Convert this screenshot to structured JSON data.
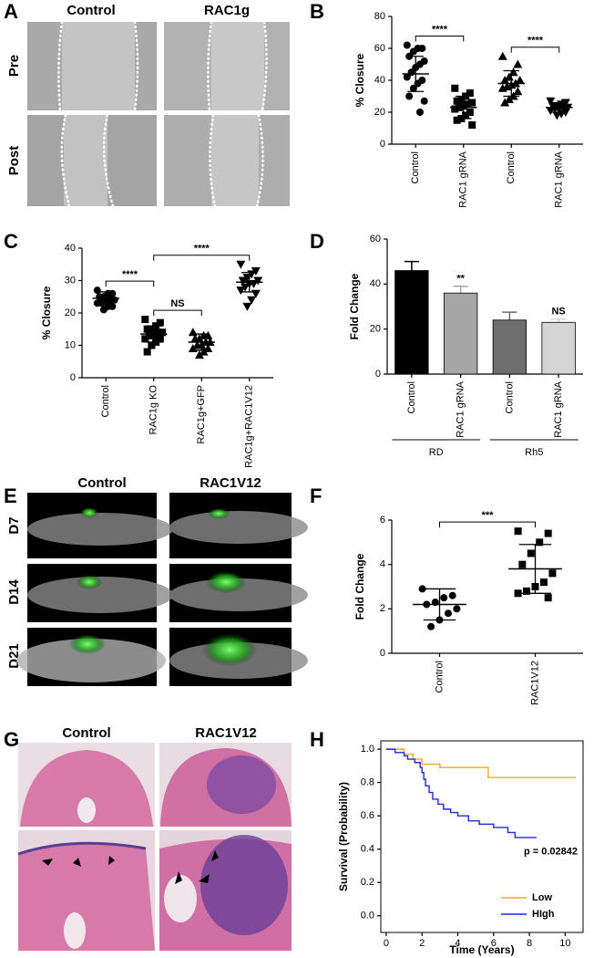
{
  "images": [
    {
      "panel": "A",
      "columns": [
        "Control",
        "RAC1g"
      ],
      "rows": [
        "Pre",
        "Post"
      ]
    },
    {
      "panel": "E",
      "columns": [
        "Control",
        "RAC1V12"
      ],
      "rows": [
        "D7",
        "D14",
        "D21"
      ]
    },
    {
      "panel": "G",
      "columns": [
        "Control",
        "RAC1V12"
      ]
    }
  ],
  "chart_data": [
    {
      "type": "strip",
      "panel": "B",
      "ylabel": "% Closure",
      "categories": [
        "Control",
        "RAC1 gRNA",
        "Control",
        "RAC1 gRNA"
      ],
      "ylim": [
        0,
        80
      ],
      "yticks": [
        0,
        20,
        40,
        60,
        80
      ],
      "color": "#000000",
      "groups": [
        {
          "marker": "circle",
          "values": [
            62,
            60,
            60,
            58,
            55,
            52,
            50,
            48,
            45,
            42,
            40,
            38,
            35,
            30,
            27,
            20
          ],
          "mean": 44,
          "sd": 11
        },
        {
          "marker": "square",
          "values": [
            35,
            32,
            30,
            28,
            27,
            26,
            25,
            24,
            23,
            22,
            20,
            18,
            16,
            15,
            12
          ],
          "mean": 23,
          "sd": 7
        },
        {
          "marker": "triangle",
          "values": [
            55,
            50,
            45,
            42,
            40,
            40,
            38,
            37,
            36,
            35,
            33,
            30,
            28,
            26
          ],
          "mean": 38,
          "sd": 8
        },
        {
          "marker": "triangle-down",
          "values": [
            27,
            26,
            25,
            24,
            24,
            23,
            23,
            22,
            22,
            21,
            20,
            19,
            18
          ],
          "mean": 23,
          "sd": 3
        }
      ],
      "significance": [
        {
          "groups": [
            0,
            1
          ],
          "label": "****"
        },
        {
          "groups": [
            2,
            3
          ],
          "label": "****"
        }
      ]
    },
    {
      "type": "strip",
      "panel": "C",
      "ylabel": "% Closure",
      "categories": [
        "Control",
        "RAC1g KO",
        "RAC1g+GFP",
        "RAC1g+RAC1V12"
      ],
      "ylim": [
        0,
        40
      ],
      "yticks": [
        0,
        10,
        20,
        30,
        40
      ],
      "color": "#000000",
      "groups": [
        {
          "marker": "circle",
          "values": [
            27,
            26,
            26,
            25,
            25,
            24,
            24,
            24,
            23,
            23,
            22,
            22,
            21
          ],
          "mean": 24.5,
          "sd": 2
        },
        {
          "marker": "square",
          "values": [
            18,
            17,
            16,
            15,
            15,
            14,
            14,
            13,
            13,
            12,
            12,
            11,
            10,
            8
          ],
          "mean": 13.5,
          "sd": 2.5
        },
        {
          "marker": "triangle",
          "values": [
            14,
            13,
            13,
            12,
            12,
            11,
            11,
            10,
            10,
            9,
            9,
            8,
            7
          ],
          "mean": 11,
          "sd": 2.5
        },
        {
          "marker": "triangle-down",
          "values": [
            35,
            33,
            32,
            31,
            30,
            30,
            29,
            29,
            28,
            27,
            26,
            24,
            22
          ],
          "mean": 29.5,
          "sd": 3
        }
      ],
      "significance": [
        {
          "groups": [
            0,
            1
          ],
          "label": "****"
        },
        {
          "groups": [
            1,
            2
          ],
          "label": "NS"
        },
        {
          "groups": [
            1,
            3
          ],
          "label": "****"
        }
      ]
    },
    {
      "type": "bar",
      "panel": "D",
      "ylabel": "Fold Change",
      "categories": [
        "Control",
        "RAC1 gRNA",
        "Control",
        "RAC1 gRNA"
      ],
      "values": [
        46,
        36,
        24,
        23
      ],
      "errors": [
        4,
        3,
        3.5,
        1.5
      ],
      "colors": [
        "#000000",
        "#a6a6a6",
        "#6e6e6e",
        "#d4d4d4"
      ],
      "bar_labels": [
        null,
        "**",
        null,
        "NS"
      ],
      "ylim": [
        0,
        60
      ],
      "yticks": [
        0,
        20,
        40,
        60
      ],
      "category_groups": [
        {
          "label": "RD",
          "span": [
            0,
            1
          ]
        },
        {
          "label": "Rh5",
          "span": [
            2,
            3
          ]
        }
      ]
    },
    {
      "type": "strip",
      "panel": "F",
      "ylabel": "Fold Change",
      "categories": [
        "Control",
        "RAC1V12"
      ],
      "ylim": [
        0,
        6
      ],
      "yticks": [
        0,
        2,
        4,
        6
      ],
      "color": "#000000",
      "groups": [
        {
          "marker": "circle",
          "values": [
            2.9,
            2.6,
            2.5,
            2.3,
            2.2,
            2.0,
            1.8,
            1.5,
            1.2
          ],
          "mean": 2.2,
          "sd": 0.7
        },
        {
          "marker": "square",
          "values": [
            5.5,
            5.4,
            5.0,
            4.5,
            4.0,
            3.6,
            3.2,
            3.0,
            2.8,
            2.7,
            2.5
          ],
          "mean": 3.8,
          "sd": 1.1
        }
      ],
      "significance": [
        {
          "groups": [
            0,
            1
          ],
          "label": "***"
        }
      ]
    },
    {
      "type": "step",
      "panel": "H",
      "ylabel": "Survival (Probability)",
      "xlabel": "Time (Years)",
      "xlim": [
        -0.3,
        11
      ],
      "xticks": [
        0,
        2,
        4,
        6,
        8,
        10
      ],
      "ylim": [
        -0.1,
        1.05
      ],
      "yticks": [
        {
          "value": 0,
          "label": "0.0"
        },
        0.2,
        0.4,
        0.6,
        0.8,
        {
          "value": 1,
          "label": "1.0"
        }
      ],
      "legend": "lower right",
      "annotation": "p = 0.02842",
      "series": [
        {
          "name": "Low",
          "color": "#f5a623",
          "x": [
            0,
            1,
            1.5,
            2,
            3,
            5.7,
            10.6
          ],
          "values": [
            1,
            0.97,
            0.94,
            0.91,
            0.89,
            0.83,
            0.83
          ]
        },
        {
          "name": "HIgh",
          "color": "#1f2bd8",
          "x": [
            0,
            0.5,
            1,
            1.2,
            1.6,
            1.9,
            2,
            2.1,
            2.2,
            2.4,
            2.6,
            2.9,
            3.2,
            3.6,
            4,
            4.6,
            5.2,
            6,
            6.8,
            7.2,
            8.4
          ],
          "values": [
            1,
            0.98,
            0.96,
            0.94,
            0.92,
            0.89,
            0.86,
            0.82,
            0.78,
            0.74,
            0.7,
            0.67,
            0.64,
            0.62,
            0.6,
            0.57,
            0.55,
            0.53,
            0.5,
            0.47,
            0.47
          ]
        }
      ]
    }
  ]
}
